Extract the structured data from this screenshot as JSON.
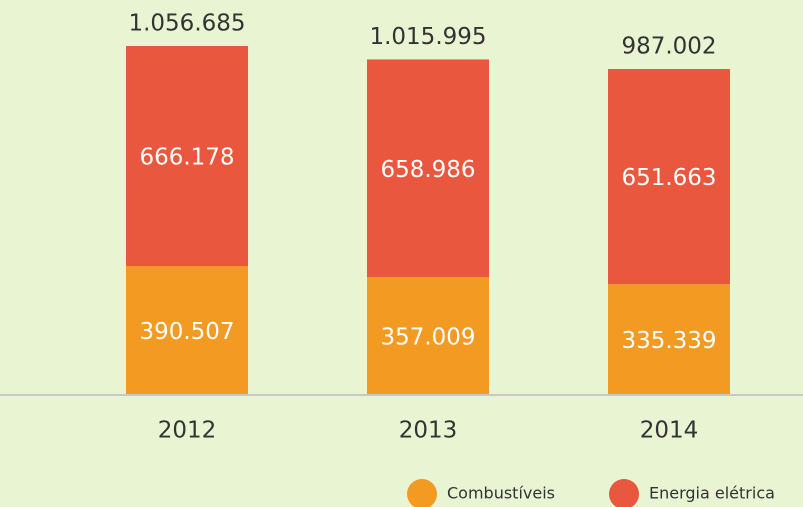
{
  "chart_data": {
    "type": "stacked-bar",
    "categories": [
      "2012",
      "2013",
      "2014"
    ],
    "series": [
      {
        "name": "Combustíveis",
        "color": "#f39a23",
        "values": [
          390507,
          357009,
          335339
        ],
        "value_labels": [
          "390.507",
          "357.009",
          "335.339"
        ]
      },
      {
        "name": "Energia elétrica",
        "color": "#e9573f",
        "values": [
          666178,
          658986,
          651663
        ],
        "value_labels": [
          "666.178",
          "658.986",
          "651.663"
        ]
      }
    ],
    "totals": {
      "values": [
        1056685,
        1015995,
        987002
      ],
      "value_labels": [
        "1.056.685",
        "1.015.995",
        "987.002"
      ]
    }
  }
}
